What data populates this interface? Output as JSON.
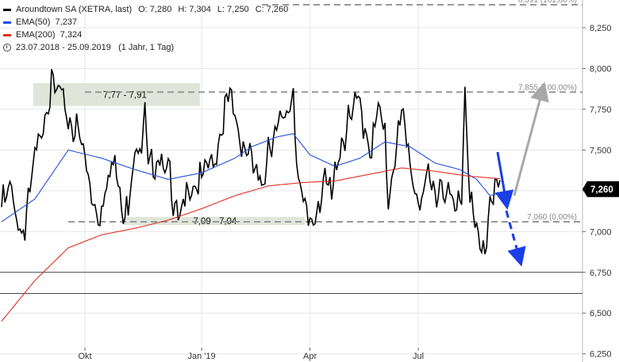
{
  "legend": {
    "instrument": "Aroundtown SA (XETRA, last)",
    "open": "O: 7,280",
    "high": "H: 7,304",
    "low": "L: 7,250",
    "close": "C: 7,260",
    "ema50_label": "EMA(50)",
    "ema50_value": "7,237",
    "ema200_label": "EMA(200)",
    "ema200_value": "7,324",
    "period": "23.07.2018 - 25.09.2019",
    "interval": "(1 Jahr, 1 Tag)"
  },
  "colors": {
    "price": "#000000",
    "ema50": "#1f4fe0",
    "ema200": "#e03020",
    "guide": "#999999",
    "arrow_blue": "#1a3fe6",
    "arrow_gray": "#a8a8a8",
    "zone": "#dfe6d9",
    "last_badge": "#000000"
  },
  "chart_data": {
    "type": "line",
    "title": "Aroundtown SA (XETRA, last)",
    "ylim": [
      6.2,
      8.42
    ],
    "yticks": [
      "8,250",
      "8,000",
      "7,750",
      "7,500",
      "7,250",
      "7,000",
      "6,750",
      "6,500",
      "6,250"
    ],
    "ytick_values": [
      8.25,
      8.0,
      7.75,
      7.5,
      7.25,
      7.0,
      6.75,
      6.5,
      6.25
    ],
    "xticks": [
      "Okt",
      "Jan '19",
      "Apr",
      "Jul"
    ],
    "xtick_positions": [
      50,
      120,
      185,
      250
    ],
    "x_count": 300,
    "series": [
      {
        "name": "Aroundtown SA (XETRA, last)",
        "keypoints": [
          [
            0,
            7.15
          ],
          [
            6,
            7.25
          ],
          [
            10,
            7.05
          ],
          [
            14,
            7.0
          ],
          [
            18,
            7.3
          ],
          [
            22,
            7.55
          ],
          [
            26,
            7.75
          ],
          [
            30,
            7.88
          ],
          [
            36,
            7.82
          ],
          [
            40,
            7.7
          ],
          [
            46,
            7.6
          ],
          [
            50,
            7.45
          ],
          [
            55,
            7.2
          ],
          [
            60,
            7.1
          ],
          [
            64,
            7.3
          ],
          [
            68,
            7.5
          ],
          [
            72,
            7.2
          ],
          [
            76,
            7.1
          ],
          [
            80,
            7.45
          ],
          [
            84,
            7.6
          ],
          [
            86,
            7.8
          ],
          [
            88,
            7.5
          ],
          [
            92,
            7.3
          ],
          [
            96,
            7.4
          ],
          [
            100,
            7.5
          ],
          [
            104,
            7.1
          ],
          [
            108,
            7.05
          ],
          [
            112,
            7.3
          ],
          [
            116,
            7.3
          ],
          [
            120,
            7.3
          ],
          [
            124,
            7.4
          ],
          [
            128,
            7.45
          ],
          [
            132,
            7.65
          ],
          [
            136,
            7.82
          ],
          [
            140,
            7.7
          ],
          [
            144,
            7.55
          ],
          [
            148,
            7.5
          ],
          [
            152,
            7.35
          ],
          [
            156,
            7.25
          ],
          [
            160,
            7.55
          ],
          [
            164,
            7.6
          ],
          [
            168,
            7.65
          ],
          [
            172,
            7.75
          ],
          [
            175,
            7.88
          ],
          [
            178,
            7.3
          ],
          [
            182,
            7.1
          ],
          [
            186,
            7.05
          ],
          [
            190,
            7.2
          ],
          [
            194,
            7.3
          ],
          [
            198,
            7.2
          ],
          [
            202,
            7.5
          ],
          [
            206,
            7.6
          ],
          [
            210,
            7.7
          ],
          [
            214,
            7.8
          ],
          [
            218,
            7.65
          ],
          [
            222,
            7.5
          ],
          [
            226,
            7.75
          ],
          [
            230,
            7.55
          ],
          [
            232,
            7.2
          ],
          [
            236,
            7.5
          ],
          [
            240,
            7.7
          ],
          [
            244,
            7.5
          ],
          [
            248,
            7.25
          ],
          [
            252,
            7.2
          ],
          [
            256,
            7.3
          ],
          [
            260,
            7.25
          ],
          [
            264,
            7.3
          ],
          [
            268,
            7.25
          ],
          [
            272,
            7.1
          ],
          [
            276,
            7.25
          ],
          [
            278,
            7.9
          ],
          [
            281,
            7.25
          ],
          [
            285,
            6.95
          ],
          [
            288,
            6.87
          ],
          [
            290,
            6.88
          ],
          [
            293,
            7.2
          ],
          [
            296,
            7.3
          ],
          [
            299,
            7.26
          ]
        ]
      },
      {
        "name": "EMA(50)",
        "keypoints": [
          [
            0,
            7.06
          ],
          [
            20,
            7.2
          ],
          [
            40,
            7.5
          ],
          [
            60,
            7.45
          ],
          [
            80,
            7.38
          ],
          [
            100,
            7.32
          ],
          [
            120,
            7.36
          ],
          [
            140,
            7.45
          ],
          [
            150,
            7.52
          ],
          [
            165,
            7.58
          ],
          [
            175,
            7.6
          ],
          [
            185,
            7.47
          ],
          [
            200,
            7.4
          ],
          [
            215,
            7.45
          ],
          [
            230,
            7.55
          ],
          [
            245,
            7.52
          ],
          [
            260,
            7.42
          ],
          [
            275,
            7.38
          ],
          [
            285,
            7.32
          ],
          [
            293,
            7.22
          ],
          [
            299,
            7.237
          ]
        ]
      },
      {
        "name": "EMA(200)",
        "keypoints": [
          [
            0,
            6.45
          ],
          [
            20,
            6.7
          ],
          [
            40,
            6.9
          ],
          [
            60,
            6.98
          ],
          [
            80,
            7.02
          ],
          [
            100,
            7.07
          ],
          [
            120,
            7.14
          ],
          [
            140,
            7.22
          ],
          [
            160,
            7.28
          ],
          [
            180,
            7.3
          ],
          [
            200,
            7.31
          ],
          [
            220,
            7.35
          ],
          [
            240,
            7.39
          ],
          [
            260,
            7.37
          ],
          [
            280,
            7.34
          ],
          [
            299,
            7.324
          ]
        ]
      }
    ],
    "horizontal_lines": [
      {
        "value": 8.391,
        "label": "8,391 (161,80%)"
      },
      {
        "value": 7.855,
        "label": "7,855 (100,00%)"
      },
      {
        "value": 7.06,
        "label": "7,060 (0,00%)"
      },
      {
        "value": 6.75,
        "label": ""
      },
      {
        "value": 6.62,
        "label": ""
      }
    ],
    "zones": [
      {
        "label": "7,77 - 7,91",
        "y_range": [
          7.77,
          7.91
        ],
        "x_range": [
          19,
          119
        ]
      },
      {
        "label": "7,09 - 7,04",
        "y_range": [
          7.04,
          7.09
        ],
        "x_range": [
          73,
          182
        ]
      }
    ],
    "last_value": "7,260",
    "last_value_num": 7.26,
    "annotations": [
      "arrow-up-gray",
      "arrow-down-blue",
      "arrow-down-blue-dashed"
    ]
  }
}
